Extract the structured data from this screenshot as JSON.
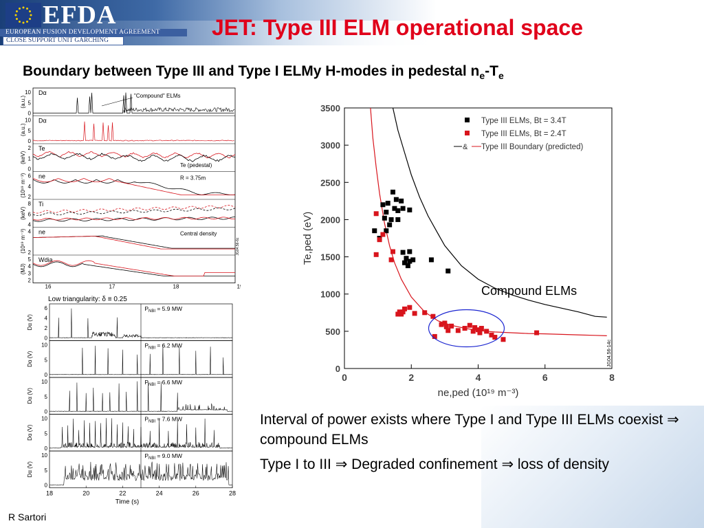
{
  "header": {
    "logo_text": "EFDA",
    "agreement": "EUROPEAN FUSION DEVELOPMENT AGREEMENT",
    "unit": "CLOSE SUPPORT UNIT GARCHING",
    "flag_color": "#1d3e86"
  },
  "slide": {
    "title": "JET: Type III ELM operational space",
    "subtitle_main": "Boundary between Type III and Type I ELMy H-modes in pedestal n",
    "subtitle_sub1": "e",
    "subtitle_dash": "-T",
    "subtitle_sub2": "e",
    "bullets": [
      "Interval of power exists where Type I and Type III ELMs coexist ⇒ compound ELMs",
      "Type I to III ⇒ Degraded confinement ⇒ loss of density"
    ],
    "author": "R Sartori",
    "title_color": "#e0001a"
  },
  "timetraces": {
    "panel_labels": [
      "Dα",
      "Dα",
      "Te",
      "ne",
      "Ti",
      "ne",
      "Wdia"
    ],
    "annotations": [
      "\"Compound\" ELMs",
      "Te (pedestal)",
      "R = 3.75m",
      "Central density"
    ],
    "y_units": [
      "(a.u.)",
      "(a.u.)",
      "(keV)",
      "(10¹⁹ m⁻³)",
      "(keV)",
      "(10¹⁹ m⁻³)",
      "(MJ)"
    ],
    "y_ticks": [
      [
        "10",
        "5",
        "0"
      ],
      [
        "10",
        "5",
        "0"
      ],
      [
        "2",
        "1",
        "0"
      ],
      [
        "6",
        "4",
        "2"
      ],
      [
        "8",
        "6",
        "4"
      ],
      [
        "4",
        "2"
      ],
      [
        "5",
        "4",
        "3",
        "2"
      ]
    ],
    "x_ticks": [
      "16",
      "17",
      "18",
      "19"
    ],
    "pulse_id": "JG04.56-6c",
    "colors": {
      "black": "#000000",
      "red": "#d8141c"
    }
  },
  "lowtri": {
    "title": "Low triangularity: δ ≡ 0.25",
    "panels": [
      {
        "power": "P",
        "power_sub": "NBI",
        "power_val": " = 5.9 MW",
        "yticks": [
          "6",
          "4",
          "2",
          "0"
        ]
      },
      {
        "power": "P",
        "power_sub": "NBI",
        "power_val": " = 6.2 MW",
        "yticks": [
          "10",
          "5",
          "0"
        ]
      },
      {
        "power": "P",
        "power_sub": "NBI",
        "power_val": " = 6.6 MW",
        "yticks": [
          "10",
          "5",
          "0"
        ]
      },
      {
        "power": "P",
        "power_sub": "NBI",
        "power_val": " = 7.6 MW",
        "yticks": [
          "10",
          "5",
          "0"
        ]
      },
      {
        "power": "P",
        "power_sub": "NBI",
        "power_val": " = 9.0 MW",
        "yticks": [
          "10",
          "5",
          "0"
        ]
      }
    ],
    "ylabel": "Dα (V)",
    "x_ticks": [
      "18",
      "20",
      "22",
      "24",
      "26",
      "28"
    ],
    "xlabel": "Time (s)"
  },
  "chart_data": {
    "type": "scatter",
    "title": "",
    "xlabel": "ne,ped (10¹⁹ m⁻³)",
    "ylabel": "Te,ped (eV)",
    "xlim": [
      0,
      8
    ],
    "ylim": [
      0,
      3500
    ],
    "x_ticks": [
      0,
      2,
      4,
      6,
      8
    ],
    "y_ticks": [
      0,
      500,
      1000,
      1500,
      2000,
      2500,
      3000,
      3500
    ],
    "grid": false,
    "legend_position": "top-right",
    "annotation": "Compound ELMs",
    "figure_id": "JG04.56-14c",
    "series": [
      {
        "name": "Type III ELMs, Bt = 3.4T",
        "color": "#000000",
        "kind": "points",
        "points": [
          [
            1.45,
            2370
          ],
          [
            1.15,
            2200
          ],
          [
            1.3,
            2220
          ],
          [
            1.55,
            2270
          ],
          [
            1.7,
            2250
          ],
          [
            1.5,
            2150
          ],
          [
            1.75,
            2150
          ],
          [
            1.25,
            2100
          ],
          [
            1.6,
            2120
          ],
          [
            1.95,
            2130
          ],
          [
            1.2,
            2020
          ],
          [
            1.4,
            2000
          ],
          [
            1.6,
            2000
          ],
          [
            1.35,
            1930
          ],
          [
            0.9,
            1850
          ],
          [
            1.25,
            1850
          ],
          [
            1.75,
            1560
          ],
          [
            1.95,
            1570
          ],
          [
            1.85,
            1480
          ],
          [
            1.8,
            1420
          ],
          [
            1.95,
            1440
          ],
          [
            2.05,
            1460
          ],
          [
            1.9,
            1380
          ],
          [
            2.6,
            1460
          ],
          [
            3.1,
            1310
          ],
          [
            1.05,
            1750
          ]
        ]
      },
      {
        "name": "Type III ELMs, Bt = 2.4T",
        "color": "#d8141c",
        "kind": "points",
        "points": [
          [
            0.95,
            2080
          ],
          [
            1.15,
            1800
          ],
          [
            1.05,
            1730
          ],
          [
            0.95,
            1530
          ],
          [
            1.4,
            1460
          ],
          [
            1.45,
            1570
          ],
          [
            1.65,
            760
          ],
          [
            1.75,
            760
          ],
          [
            1.6,
            730
          ],
          [
            1.7,
            730
          ],
          [
            1.8,
            800
          ],
          [
            1.95,
            820
          ],
          [
            2.1,
            740
          ],
          [
            2.4,
            750
          ],
          [
            2.65,
            700
          ],
          [
            2.7,
            430
          ],
          [
            2.9,
            590
          ],
          [
            3.0,
            610
          ],
          [
            3.05,
            560
          ],
          [
            3.2,
            570
          ],
          [
            3.1,
            510
          ],
          [
            3.4,
            510
          ],
          [
            3.6,
            540
          ],
          [
            3.75,
            580
          ],
          [
            3.9,
            550
          ],
          [
            3.85,
            500
          ],
          [
            4.0,
            520
          ],
          [
            4.1,
            540
          ],
          [
            4.25,
            500
          ],
          [
            4.4,
            450
          ],
          [
            4.5,
            420
          ],
          [
            4.75,
            390
          ],
          [
            5.75,
            480
          ],
          [
            4.05,
            480
          ]
        ]
      },
      {
        "name": "Type III Boundary (predicted)",
        "color": "#000000",
        "kind": "line",
        "points": [
          [
            1.45,
            3500
          ],
          [
            1.6,
            3200
          ],
          [
            1.8,
            2900
          ],
          [
            2.0,
            2600
          ],
          [
            2.25,
            2300
          ],
          [
            2.5,
            2050
          ],
          [
            2.75,
            1850
          ],
          [
            3.0,
            1650
          ],
          [
            3.5,
            1380
          ],
          [
            4.0,
            1200
          ],
          [
            4.5,
            1080
          ],
          [
            5.0,
            990
          ],
          [
            5.5,
            920
          ],
          [
            6.0,
            860
          ],
          [
            6.5,
            810
          ],
          [
            7.0,
            760
          ],
          [
            7.5,
            700
          ],
          [
            7.85,
            690
          ]
        ]
      },
      {
        "name": "",
        "color": "#d8141c",
        "kind": "line",
        "points": [
          [
            0.78,
            3500
          ],
          [
            0.85,
            3100
          ],
          [
            0.95,
            2700
          ],
          [
            1.05,
            2350
          ],
          [
            1.2,
            1950
          ],
          [
            1.35,
            1650
          ],
          [
            1.5,
            1420
          ],
          [
            1.7,
            1200
          ],
          [
            2.0,
            960
          ],
          [
            2.4,
            760
          ],
          [
            2.8,
            640
          ],
          [
            3.2,
            580
          ],
          [
            3.6,
            540
          ],
          [
            4.0,
            510
          ],
          [
            4.5,
            490
          ],
          [
            5.0,
            480
          ],
          [
            5.5,
            470
          ],
          [
            6.0,
            465
          ],
          [
            6.5,
            458
          ],
          [
            7.0,
            452
          ],
          [
            7.5,
            445
          ],
          [
            7.85,
            440
          ]
        ]
      }
    ]
  }
}
